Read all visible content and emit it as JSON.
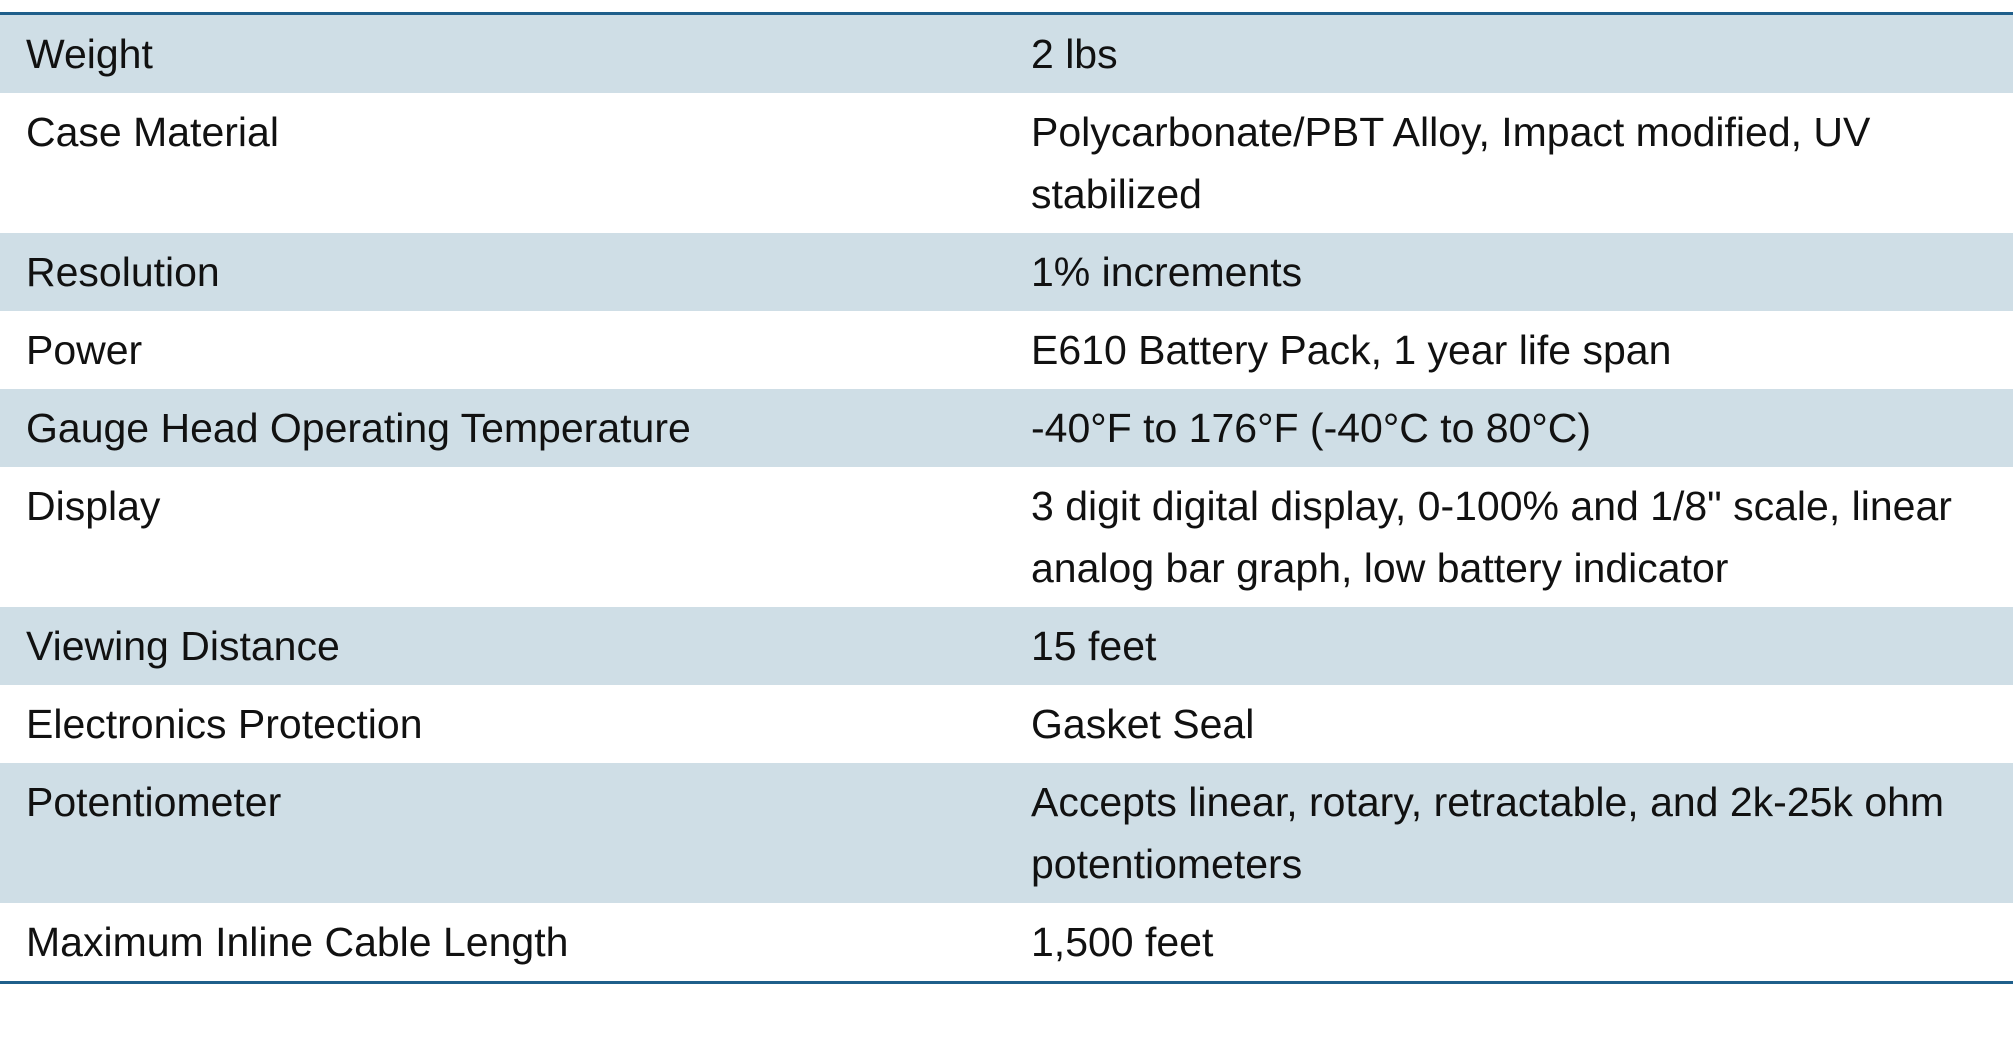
{
  "table": {
    "rows": [
      [
        "Weight",
        "2 lbs"
      ],
      [
        "Case Material",
        "Polycarbonate/PBT Alloy, Impact modified, UV stabilized"
      ],
      [
        "Resolution",
        "1% increments"
      ],
      [
        "Power",
        "E610 Battery Pack, 1 year life span"
      ],
      [
        "Gauge Head Operating Temperature",
        "-40°F to 176°F (-40°C to 80°C)"
      ],
      [
        "Display",
        "3 digit digital display, 0-100% and 1/8\" scale, linear analog bar graph, low battery indicator"
      ],
      [
        "Viewing Distance",
        "15 feet"
      ],
      [
        "Electronics Protection",
        "Gasket Seal"
      ],
      [
        "Potentiometer",
        "Accepts linear, rotary, retractable, and 2k-25k ohm potentiometers"
      ],
      [
        "Maximum Inline Cable Length",
        "1,500 feet"
      ]
    ]
  }
}
